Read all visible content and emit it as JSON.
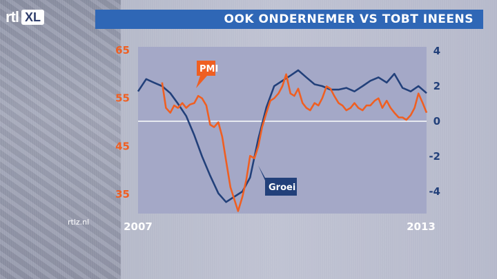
{
  "header": {
    "logo_text": "rtl",
    "logo_badge": "XL",
    "title": "OOK ONDERNEMER VS TOBT INEENS"
  },
  "footer": {
    "watermark": "rtlz.nl"
  },
  "colors": {
    "pmi": "#ef5f22",
    "groei": "#22407a",
    "title_bar": "#2f67b6",
    "plot_bg": "#a4a8c7"
  },
  "chart_data": {
    "type": "line",
    "title": "OOK ONDERNEMER VS TOBT INEENS",
    "x_tick_labels": [
      "2007",
      "2013"
    ],
    "x_range": [
      2007,
      2013
    ],
    "y_left": {
      "ticks": [
        "65",
        "55",
        "45",
        "35"
      ],
      "range": [
        30,
        65
      ]
    },
    "y_right": {
      "ticks": [
        "4",
        "2",
        "0",
        "-2",
        "-4"
      ],
      "range": [
        -5,
        4
      ]
    },
    "reference_line": 0,
    "series": [
      {
        "name": "PMI",
        "axis": "left",
        "color": "#ef5f22",
        "x": [
          2007.5,
          2007.58,
          2007.67,
          2007.75,
          2007.83,
          2007.92,
          2008.0,
          2008.08,
          2008.17,
          2008.25,
          2008.33,
          2008.42,
          2008.5,
          2008.58,
          2008.67,
          2008.75,
          2008.83,
          2008.92,
          2009.0,
          2009.08,
          2009.17,
          2009.25,
          2009.33,
          2009.42,
          2009.5,
          2009.58,
          2009.67,
          2009.75,
          2009.83,
          2009.92,
          2010.0,
          2010.08,
          2010.17,
          2010.25,
          2010.33,
          2010.42,
          2010.5,
          2010.58,
          2010.67,
          2010.75,
          2010.83,
          2010.92,
          2011.0,
          2011.08,
          2011.17,
          2011.25,
          2011.33,
          2011.42,
          2011.5,
          2011.58,
          2011.67,
          2011.75,
          2011.83,
          2011.92,
          2012.0,
          2012.08,
          2012.17,
          2012.25,
          2012.33,
          2012.42,
          2012.5,
          2012.58,
          2012.67,
          2012.75,
          2012.83,
          2012.92,
          2013.0
        ],
        "values": [
          58.3,
          53.0,
          52.0,
          53.5,
          53.0,
          54.0,
          53.0,
          53.7,
          54.0,
          55.5,
          55.0,
          53.5,
          49.5,
          49.0,
          50.0,
          47.0,
          42.0,
          36.5,
          34.0,
          31.5,
          34.5,
          38.0,
          43.0,
          42.5,
          45.0,
          49.0,
          52.0,
          54.5,
          55.0,
          56.0,
          57.5,
          60.0,
          56.0,
          55.5,
          57.0,
          54.0,
          53.0,
          52.5,
          54.0,
          53.5,
          55.0,
          57.5,
          57.0,
          55.5,
          54.0,
          53.5,
          52.5,
          53.0,
          54.0,
          53.0,
          52.5,
          53.5,
          53.5,
          54.5,
          55.0,
          53.0,
          54.5,
          53.0,
          52.0,
          51.0,
          51.0,
          50.5,
          51.5,
          53.0,
          56.0,
          54.0,
          52.0
        ]
      },
      {
        "name": "Groei",
        "axis": "right",
        "color": "#22407a",
        "x": [
          2007.0,
          2007.17,
          2007.33,
          2007.5,
          2007.67,
          2007.83,
          2008.0,
          2008.17,
          2008.33,
          2008.5,
          2008.67,
          2008.83,
          2009.0,
          2009.17,
          2009.33,
          2009.5,
          2009.67,
          2009.83,
          2010.0,
          2010.17,
          2010.33,
          2010.5,
          2010.67,
          2010.83,
          2011.0,
          2011.17,
          2011.33,
          2011.5,
          2011.67,
          2011.83,
          2012.0,
          2012.17,
          2012.33,
          2012.5,
          2012.67,
          2012.83,
          2013.0
        ],
        "values": [
          1.7,
          2.4,
          2.2,
          2.0,
          1.6,
          1.0,
          0.3,
          -0.8,
          -2.0,
          -3.1,
          -4.1,
          -4.6,
          -4.3,
          -4.0,
          -3.2,
          -1.0,
          0.8,
          2.0,
          2.3,
          2.6,
          2.9,
          2.5,
          2.1,
          2.0,
          1.8,
          1.8,
          1.9,
          1.7,
          2.0,
          2.3,
          2.5,
          2.2,
          2.7,
          1.9,
          1.7,
          2.0,
          1.6
        ]
      }
    ]
  }
}
